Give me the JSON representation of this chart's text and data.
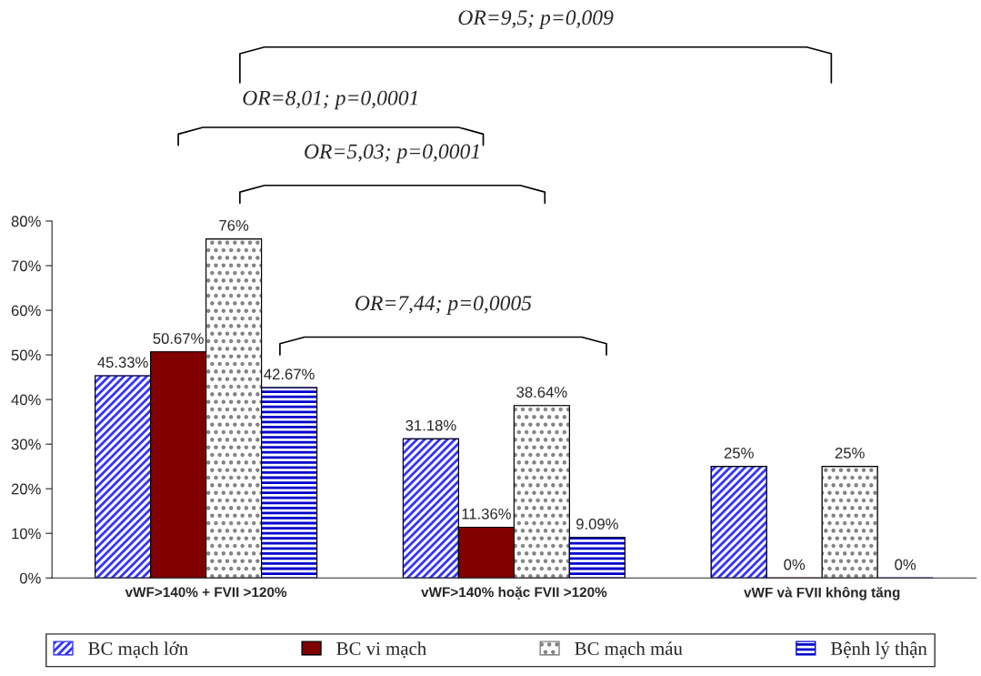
{
  "chart_data": {
    "type": "bar",
    "categories": [
      "vWF>140% + FVII >120%",
      "vWF>140% hoặc FVII >120%",
      "vWF và FVII không tăng"
    ],
    "series": [
      {
        "name": "BC mạch lớn",
        "color": "#3333ff",
        "values": [
          45.33,
          31.18,
          25
        ],
        "value_labels": [
          "45.33%",
          "31.18%",
          "25%"
        ]
      },
      {
        "name": "BC vi mạch",
        "color": "#800000",
        "values": [
          50.67,
          11.36,
          0
        ],
        "value_labels": [
          "50.67%",
          "11.36%",
          "0%"
        ]
      },
      {
        "name": "BC mạch máu",
        "color": "#808080",
        "values": [
          76,
          38.64,
          25
        ],
        "value_labels": [
          "76%",
          "38.64%",
          "25%"
        ]
      },
      {
        "name": "Bệnh lý thận",
        "color": "#0000cc",
        "values": [
          42.67,
          9.09,
          0
        ],
        "value_labels": [
          "42.67%",
          "9.09%",
          "0%"
        ]
      }
    ],
    "ylim": [
      0,
      80
    ],
    "yticks": [
      {
        "value": 0,
        "label": "0%"
      },
      {
        "value": 10,
        "label": "10%"
      },
      {
        "value": 20,
        "label": "20%"
      },
      {
        "value": 30,
        "label": "30%"
      },
      {
        "value": 40,
        "label": "40%"
      },
      {
        "value": 50,
        "label": "50%"
      },
      {
        "value": 60,
        "label": "60%"
      },
      {
        "value": 70,
        "label": "70%"
      },
      {
        "value": 80,
        "label": "80%"
      }
    ],
    "annotations": [
      "OR=9,5; p=0,009",
      "OR=8,01; p=0,0001",
      "OR=5,03; p=0,0001",
      "OR=7,44; p=0,0005"
    ],
    "grid": false,
    "legend": "bottom"
  }
}
